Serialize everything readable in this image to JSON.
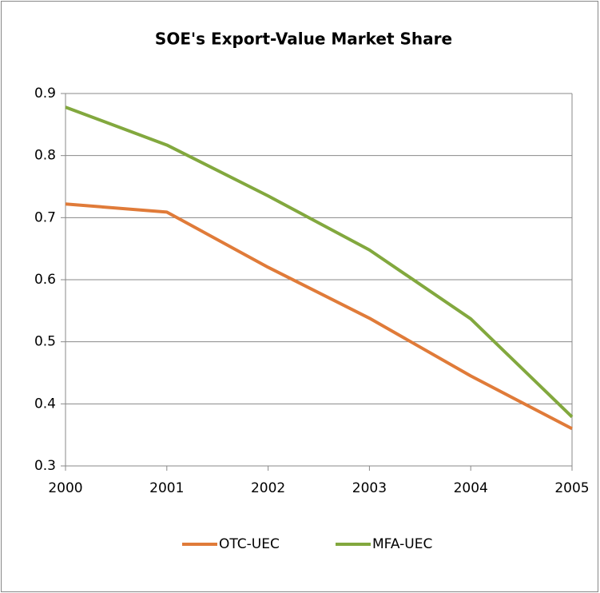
{
  "chart_data": {
    "type": "line",
    "title": "SOE's Export-Value Market Share",
    "x": [
      2000,
      2001,
      2002,
      2003,
      2004,
      2005
    ],
    "xlim": [
      2000,
      2005
    ],
    "xticks": [
      2000,
      2001,
      2002,
      2003,
      2004,
      2005
    ],
    "ylim": [
      0.3,
      0.9
    ],
    "yticks": [
      0.3,
      0.4,
      0.5,
      0.6,
      0.7,
      0.8,
      0.9
    ],
    "grid": true,
    "legend": "bottom",
    "series": [
      {
        "name": "OTC-UEC",
        "color": "#e07b39",
        "values": [
          0.722,
          0.709,
          0.62,
          0.538,
          0.445,
          0.36
        ]
      },
      {
        "name": "MFA-UEC",
        "color": "#82a83e",
        "values": [
          0.878,
          0.817,
          0.735,
          0.648,
          0.537,
          0.379
        ]
      }
    ]
  }
}
